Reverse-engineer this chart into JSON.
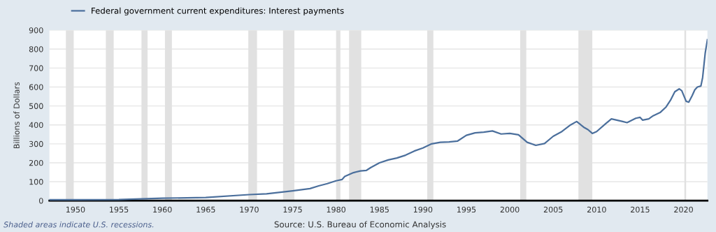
{
  "chart_data": {
    "type": "line",
    "ylabel": "Billions of Dollars",
    "annotations": [
      "Shaded areas indicate U.S. recessions.",
      "Source: U.S. Bureau of Economic Analysis"
    ],
    "x": [
      1947,
      1950,
      1955,
      1960,
      1965,
      1970,
      1972,
      1975,
      1977,
      1978,
      1979,
      1980,
      1980.7,
      1981,
      1982,
      1982.8,
      1983.5,
      1984,
      1985,
      1986,
      1987,
      1988,
      1989,
      1990,
      1991,
      1992,
      1993,
      1994,
      1995,
      1996,
      1997,
      1998,
      1999,
      2000,
      2001,
      2002,
      2003,
      2004,
      2005,
      2006,
      2007,
      2007.7,
      2008.5,
      2009,
      2009.5,
      2010,
      2011,
      2011.7,
      2013,
      2013.5,
      2014.5,
      2015,
      2015.3,
      2016,
      2016.5,
      2017.3,
      2018,
      2018.5,
      2019,
      2019.5,
      2019.8,
      2020.3,
      2020.6,
      2021,
      2021.3,
      2021.6,
      2022,
      2022.2,
      2022.5,
      2022.75
    ],
    "series": [
      {
        "name": "Federal government current expenditures: Interest payments",
        "color": "#4b6f9c",
        "values": [
          5,
          5,
          6,
          13,
          17,
          32,
          36,
          52,
          64,
          78,
          90,
          105,
          112,
          128,
          148,
          157,
          160,
          175,
          200,
          215,
          225,
          240,
          262,
          278,
          300,
          308,
          310,
          315,
          345,
          358,
          362,
          368,
          352,
          355,
          348,
          308,
          292,
          302,
          340,
          365,
          400,
          418,
          388,
          375,
          355,
          365,
          405,
          432,
          418,
          412,
          435,
          440,
          425,
          432,
          448,
          465,
          495,
          530,
          575,
          590,
          580,
          525,
          520,
          555,
          585,
          600,
          605,
          650,
          780,
          850
        ]
      }
    ],
    "xlim": [
      1947,
      2022.75
    ],
    "xticks": [
      1950,
      1955,
      1960,
      1965,
      1970,
      1975,
      1980,
      1985,
      1990,
      1995,
      2000,
      2005,
      2010,
      2015,
      2020
    ],
    "ylim": [
      0,
      900
    ],
    "yticks": [
      0,
      100,
      200,
      300,
      400,
      500,
      600,
      700,
      800,
      900
    ],
    "bands": [
      {
        "axis": "x",
        "from": 1948.9,
        "to": 1949.8,
        "color": "#e1e1e1"
      },
      {
        "axis": "x",
        "from": 1953.5,
        "to": 1954.4,
        "color": "#e1e1e1"
      },
      {
        "axis": "x",
        "from": 1957.6,
        "to": 1958.3,
        "color": "#e1e1e1"
      },
      {
        "axis": "x",
        "from": 1960.3,
        "to": 1961.1,
        "color": "#e1e1e1"
      },
      {
        "axis": "x",
        "from": 1969.9,
        "to": 1970.9,
        "color": "#e1e1e1"
      },
      {
        "axis": "x",
        "from": 1973.9,
        "to": 1975.2,
        "color": "#e1e1e1"
      },
      {
        "axis": "x",
        "from": 1980.0,
        "to": 1980.5,
        "color": "#e1e1e1"
      },
      {
        "axis": "x",
        "from": 1981.5,
        "to": 1982.9,
        "color": "#e1e1e1"
      },
      {
        "axis": "x",
        "from": 1990.5,
        "to": 1991.2,
        "color": "#e1e1e1"
      },
      {
        "axis": "x",
        "from": 2001.2,
        "to": 2001.9,
        "color": "#e1e1e1"
      },
      {
        "axis": "x",
        "from": 2007.9,
        "to": 2009.5,
        "color": "#e1e1e1"
      },
      {
        "axis": "x",
        "from": 2020.1,
        "to": 2020.3,
        "color": "#e1e1e1"
      }
    ],
    "grid": "y",
    "legend": "top left",
    "line_style": "solid"
  }
}
